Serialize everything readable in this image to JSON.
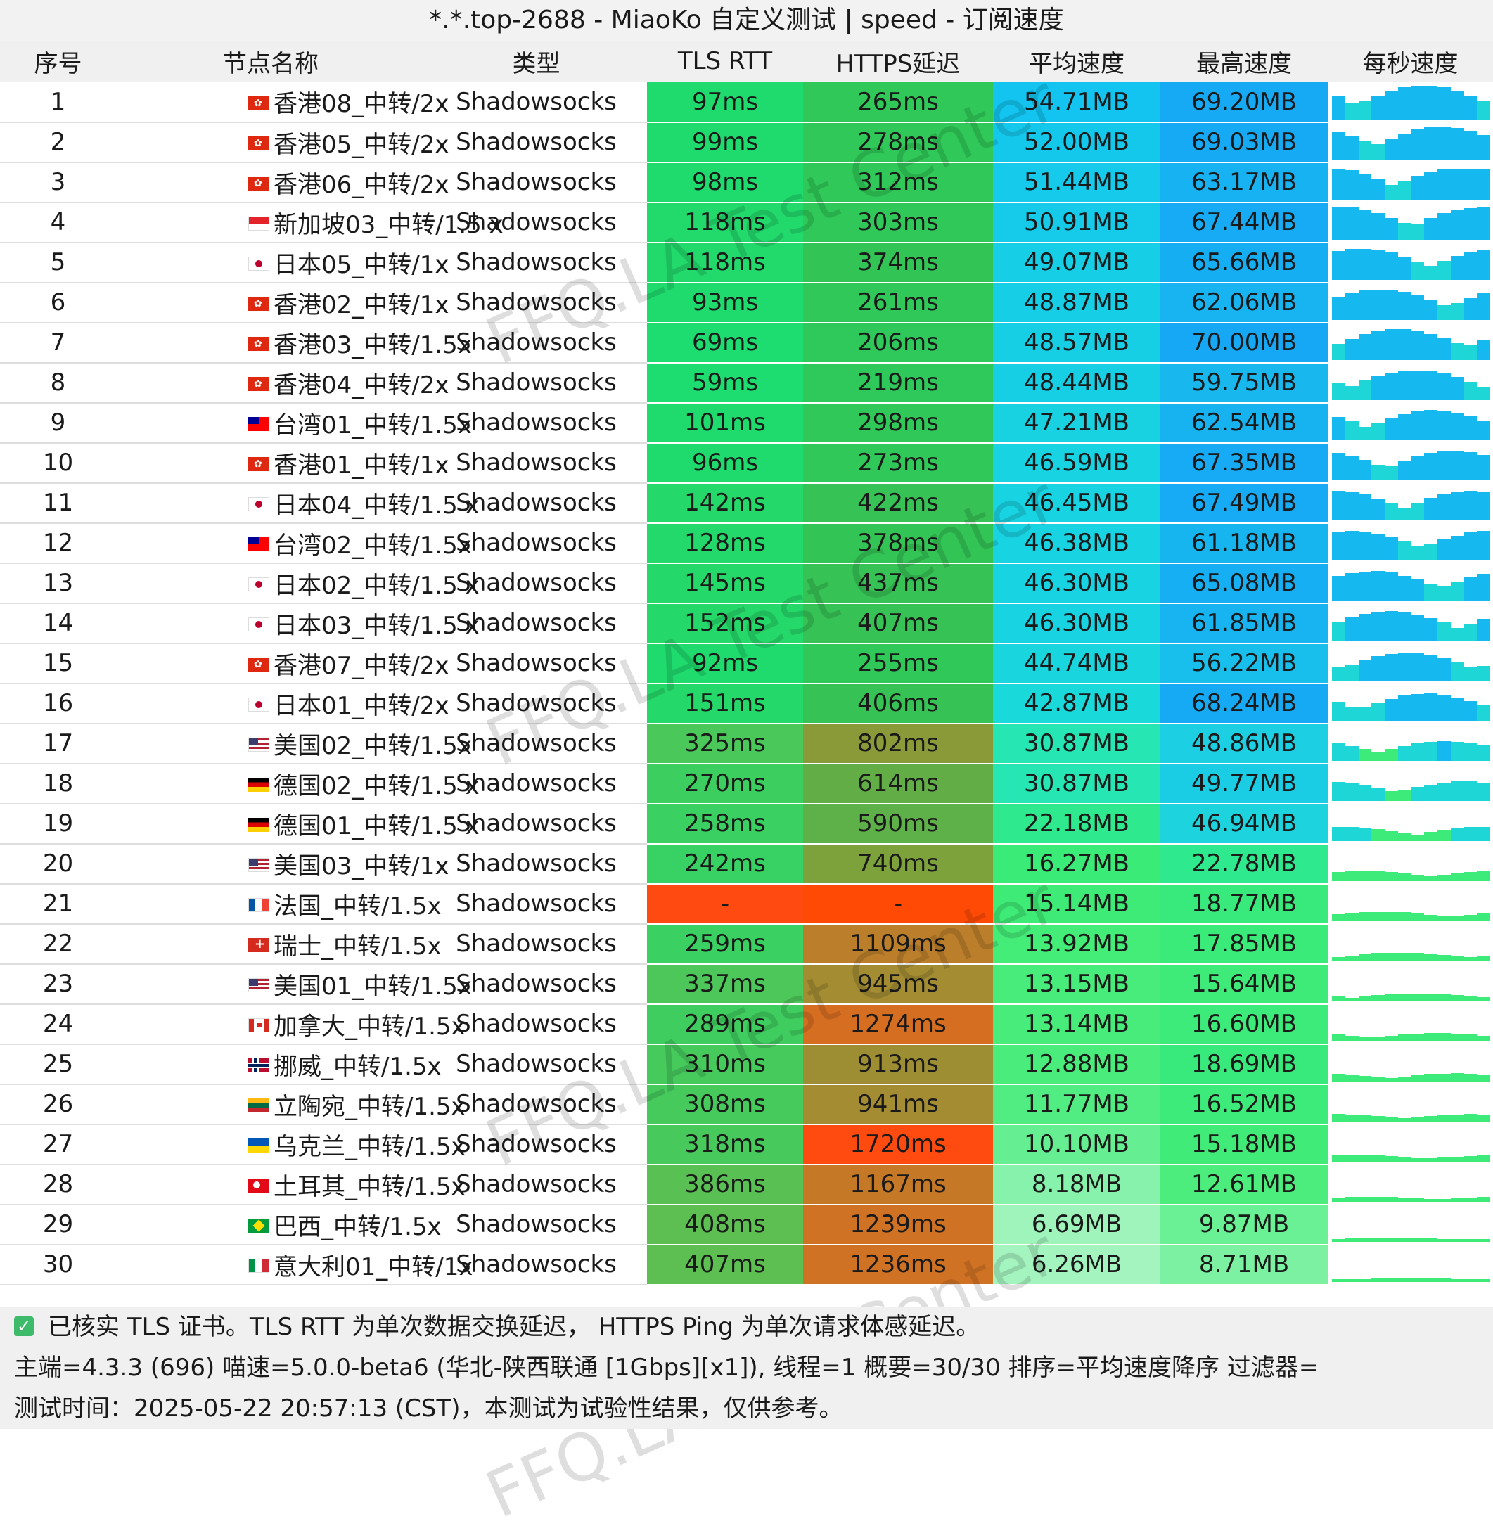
{
  "title": "*.*.top-2688 - MiaoKo 自定义测试 | speed - 订阅速度",
  "headers": [
    "序号",
    "节点名称",
    "类型",
    "TLS RTT",
    "HTTPS延迟",
    "平均速度",
    "最高速度",
    "每秒速度"
  ],
  "rows": [
    {
      "idx": "1",
      "flag": "hk",
      "name": "香港08_中转/2x",
      "type": "Shadowsocks",
      "tls": "97ms",
      "https": "265ms",
      "avg": "54.71MB",
      "max": "69.20MB",
      "tls_color": "#1fdb6e",
      "https_color": "#30c858",
      "avg_color": "#12c4ef",
      "max_color": "#16a9f4"
    },
    {
      "idx": "2",
      "flag": "hk",
      "name": "香港05_中转/2x",
      "type": "Shadowsocks",
      "tls": "99ms",
      "https": "278ms",
      "avg": "52.00MB",
      "max": "69.03MB",
      "tls_color": "#1fdb6e",
      "https_color": "#30c858",
      "avg_color": "#14c8ec",
      "max_color": "#16a9f4"
    },
    {
      "idx": "3",
      "flag": "hk",
      "name": "香港06_中转/2x",
      "type": "Shadowsocks",
      "tls": "98ms",
      "https": "312ms",
      "avg": "51.44MB",
      "max": "63.17MB",
      "tls_color": "#1fdb6e",
      "https_color": "#30c858",
      "avg_color": "#15caea",
      "max_color": "#17b2f2"
    },
    {
      "idx": "4",
      "flag": "sg",
      "name": "新加坡03_中转/1.5 x",
      "type": "Shadowsocks",
      "tls": "118ms",
      "https": "303ms",
      "avg": "50.91MB",
      "max": "67.44MB",
      "tls_color": "#22da6c",
      "https_color": "#30c858",
      "avg_color": "#15cbe9",
      "max_color": "#16abf4"
    },
    {
      "idx": "5",
      "flag": "jp",
      "name": "日本05_中转/1x",
      "type": "Shadowsocks",
      "tls": "118ms",
      "https": "374ms",
      "avg": "49.07MB",
      "max": "65.66MB",
      "tls_color": "#22da6c",
      "https_color": "#33c456",
      "avg_color": "#16cee6",
      "max_color": "#16aef3"
    },
    {
      "idx": "6",
      "flag": "hk",
      "name": "香港02_中转/1x",
      "type": "Shadowsocks",
      "tls": "93ms",
      "https": "261ms",
      "avg": "48.87MB",
      "max": "62.06MB",
      "tls_color": "#1fdb6e",
      "https_color": "#30c858",
      "avg_color": "#16cee6",
      "max_color": "#17b4f1"
    },
    {
      "idx": "7",
      "flag": "hk",
      "name": "香港03_中转/1.5x",
      "type": "Shadowsocks",
      "tls": "69ms",
      "https": "206ms",
      "avg": "48.57MB",
      "max": "70.00MB",
      "tls_color": "#1ddc70",
      "https_color": "#2ec95a",
      "avg_color": "#17cfe5",
      "max_color": "#16a7f5"
    },
    {
      "idx": "8",
      "flag": "hk",
      "name": "香港04_中转/2x",
      "type": "Shadowsocks",
      "tls": "59ms",
      "https": "219ms",
      "avg": "48.44MB",
      "max": "59.75MB",
      "tls_color": "#1ddc70",
      "https_color": "#2ec95a",
      "avg_color": "#17cfe5",
      "max_color": "#18b8ef"
    },
    {
      "idx": "9",
      "flag": "tw",
      "name": "台湾01_中转/1.5x",
      "type": "Shadowsocks",
      "tls": "101ms",
      "https": "298ms",
      "avg": "47.21MB",
      "max": "62.54MB",
      "tls_color": "#1fdb6e",
      "https_color": "#30c858",
      "avg_color": "#18d2e2",
      "max_color": "#17b3f1"
    },
    {
      "idx": "10",
      "flag": "hk",
      "name": "香港01_中转/1x",
      "type": "Shadowsocks",
      "tls": "96ms",
      "https": "273ms",
      "avg": "46.59MB",
      "max": "67.35MB",
      "tls_color": "#1fdb6e",
      "https_color": "#30c858",
      "avg_color": "#18d3e1",
      "max_color": "#16abf4"
    },
    {
      "idx": "11",
      "flag": "jp",
      "name": "日本04_中转/1.5 x",
      "type": "Shadowsocks",
      "tls": "142ms",
      "https": "422ms",
      "avg": "46.45MB",
      "max": "67.49MB",
      "tls_color": "#25d86a",
      "https_color": "#36c254",
      "avg_color": "#18d3e1",
      "max_color": "#16abf4"
    },
    {
      "idx": "12",
      "flag": "tw",
      "name": "台湾02_中转/1.5x",
      "type": "Shadowsocks",
      "tls": "128ms",
      "https": "378ms",
      "avg": "46.38MB",
      "max": "61.18MB",
      "tls_color": "#23d96b",
      "https_color": "#33c456",
      "avg_color": "#18d3e1",
      "max_color": "#17b5f0"
    },
    {
      "idx": "13",
      "flag": "jp",
      "name": "日本02_中转/1.5 x",
      "type": "Shadowsocks",
      "tls": "145ms",
      "https": "437ms",
      "avg": "46.30MB",
      "max": "65.08MB",
      "tls_color": "#25d86a",
      "https_color": "#36c254",
      "avg_color": "#18d3e1",
      "max_color": "#16aff3"
    },
    {
      "idx": "14",
      "flag": "jp",
      "name": "日本03_中转/1.5 x",
      "type": "Shadowsocks",
      "tls": "152ms",
      "https": "407ms",
      "avg": "46.30MB",
      "max": "61.85MB",
      "tls_color": "#25d86a",
      "https_color": "#36c254",
      "avg_color": "#18d3e1",
      "max_color": "#17b4f1"
    },
    {
      "idx": "15",
      "flag": "hk",
      "name": "香港07_中转/2x",
      "type": "Shadowsocks",
      "tls": "92ms",
      "https": "255ms",
      "avg": "44.74MB",
      "max": "56.22MB",
      "tls_color": "#1fdb6e",
      "https_color": "#30c858",
      "avg_color": "#19d6de",
      "max_color": "#19bfec"
    },
    {
      "idx": "16",
      "flag": "jp",
      "name": "日本01_中转/2x",
      "type": "Shadowsocks",
      "tls": "151ms",
      "https": "406ms",
      "avg": "42.87MB",
      "max": "68.24MB",
      "tls_color": "#25d86a",
      "https_color": "#36c254",
      "avg_color": "#1ad9da",
      "max_color": "#16aaf4"
    },
    {
      "idx": "17",
      "flag": "us",
      "name": "美国02_中转/1.5x",
      "type": "Shadowsocks",
      "tls": "325ms",
      "https": "802ms",
      "avg": "30.87MB",
      "max": "48.86MB",
      "tls_color": "#4bc85a",
      "https_color": "#8a9a38",
      "avg_color": "#26e6b4",
      "max_color": "#1ccfe2"
    },
    {
      "idx": "18",
      "flag": "de",
      "name": "德国02_中转/1.5 x",
      "type": "Shadowsocks",
      "tls": "270ms",
      "https": "614ms",
      "avg": "30.87MB",
      "max": "49.77MB",
      "tls_color": "#3ccf60",
      "https_color": "#63ad46",
      "avg_color": "#26e6b4",
      "max_color": "#1bcde4"
    },
    {
      "idx": "19",
      "flag": "de",
      "name": "德国01_中转/1.5 x",
      "type": "Shadowsocks",
      "tls": "258ms",
      "https": "590ms",
      "avg": "22.18MB",
      "max": "46.94MB",
      "tls_color": "#3ad062",
      "https_color": "#5eb049",
      "avg_color": "#2ee98e",
      "max_color": "#1dd3de"
    },
    {
      "idx": "20",
      "flag": "us",
      "name": "美国03_中转/1x",
      "type": "Shadowsocks",
      "tls": "242ms",
      "https": "740ms",
      "avg": "16.27MB",
      "max": "22.78MB",
      "tls_color": "#37d164",
      "https_color": "#7da23c",
      "avg_color": "#3aeb78",
      "max_color": "#2ee98e"
    },
    {
      "idx": "21",
      "flag": "fr",
      "name": "法国_中转/1.5x",
      "type": "Shadowsocks",
      "tls": "-",
      "https": "-",
      "avg": "15.14MB",
      "max": "18.77MB",
      "tls_color": "#ff4a12",
      "https_color": "#ff4a05",
      "avg_color": "#3eeb76",
      "max_color": "#38ea7c"
    },
    {
      "idx": "22",
      "flag": "ch",
      "name": "瑞士_中转/1.5x",
      "type": "Shadowsocks",
      "tls": "259ms",
      "https": "1109ms",
      "avg": "13.92MB",
      "max": "17.85MB",
      "tls_color": "#3ad062",
      "https_color": "#bb7e2a",
      "avg_color": "#44ec78",
      "max_color": "#3aeb7a"
    },
    {
      "idx": "23",
      "flag": "us",
      "name": "美国01_中转/1.5x",
      "type": "Shadowsocks",
      "tls": "337ms",
      "https": "945ms",
      "avg": "13.15MB",
      "max": "15.64MB",
      "tls_color": "#4dc75a",
      "https_color": "#a38c32",
      "avg_color": "#48ec7a",
      "max_color": "#3feb78"
    },
    {
      "idx": "24",
      "flag": "ca",
      "name": "加拿大_中转/1.5x",
      "type": "Shadowsocks",
      "tls": "289ms",
      "https": "1274ms",
      "avg": "13.14MB",
      "max": "16.60MB",
      "tls_color": "#40cd5f",
      "https_color": "#d66e22",
      "avg_color": "#48ec7a",
      "max_color": "#3ceb79"
    },
    {
      "idx": "25",
      "flag": "no",
      "name": "挪威_中转/1.5x",
      "type": "Shadowsocks",
      "tls": "310ms",
      "https": "913ms",
      "avg": "12.88MB",
      "max": "18.69MB",
      "tls_color": "#46ca5c",
      "https_color": "#9e8e33",
      "avg_color": "#4aec7c",
      "max_color": "#38ea7c"
    },
    {
      "idx": "26",
      "flag": "lt",
      "name": "立陶宛_中转/1.5x",
      "type": "Shadowsocks",
      "tls": "308ms",
      "https": "941ms",
      "avg": "11.77MB",
      "max": "16.52MB",
      "tls_color": "#46ca5c",
      "https_color": "#a38c32",
      "avg_color": "#52ed82",
      "max_color": "#3ceb79"
    },
    {
      "idx": "27",
      "flag": "ua",
      "name": "乌克兰_中转/1.5x",
      "type": "Shadowsocks",
      "tls": "318ms",
      "https": "1720ms",
      "avg": "10.10MB",
      "max": "15.18MB",
      "tls_color": "#48c95b",
      "https_color": "#ff4a10",
      "avg_color": "#66ef92",
      "max_color": "#40eb77"
    },
    {
      "idx": "28",
      "flag": "tr",
      "name": "土耳其_中转/1.5x",
      "type": "Shadowsocks",
      "tls": "386ms",
      "https": "1167ms",
      "avg": "8.18MB",
      "max": "12.61MB",
      "tls_color": "#59c154",
      "https_color": "#c57826",
      "avg_color": "#86f2ab",
      "max_color": "#4cec7d"
    },
    {
      "idx": "29",
      "flag": "br",
      "name": "巴西_中转/1.5x",
      "type": "Shadowsocks",
      "tls": "408ms",
      "https": "1239ms",
      "avg": "6.69MB",
      "max": "9.87MB",
      "tls_color": "#5dbf52",
      "https_color": "#d07224",
      "avg_color": "#9ef4bb",
      "max_color": "#6af095"
    },
    {
      "idx": "30",
      "flag": "it",
      "name": "意大利01_中转/1x",
      "type": "Shadowsocks",
      "tls": "407ms",
      "https": "1236ms",
      "avg": "6.26MB",
      "max": "8.71MB",
      "tls_color": "#5dbf52",
      "https_color": "#d07224",
      "avg_color": "#a4f4bf",
      "max_color": "#7cf1a2"
    }
  ],
  "footer": {
    "line1": "已核实 TLS 证书。TLS RTT 为单次数据交换延迟， HTTPS Ping 为单次请求体感延迟。",
    "line2": "主端=4.3.3 (696) 喵速=5.0.0-beta6 (华北-陕西联通 [1Gbps][x1]), 线程=1 概要=30/30 排序=平均速度降序 过滤器=",
    "line3": "测试时间：2025-05-22 20:57:13 (CST)，本测试为试验性结果，仅供参考。"
  },
  "watermark": "FFQ.LA Test Center",
  "check_icon": "check-icon"
}
